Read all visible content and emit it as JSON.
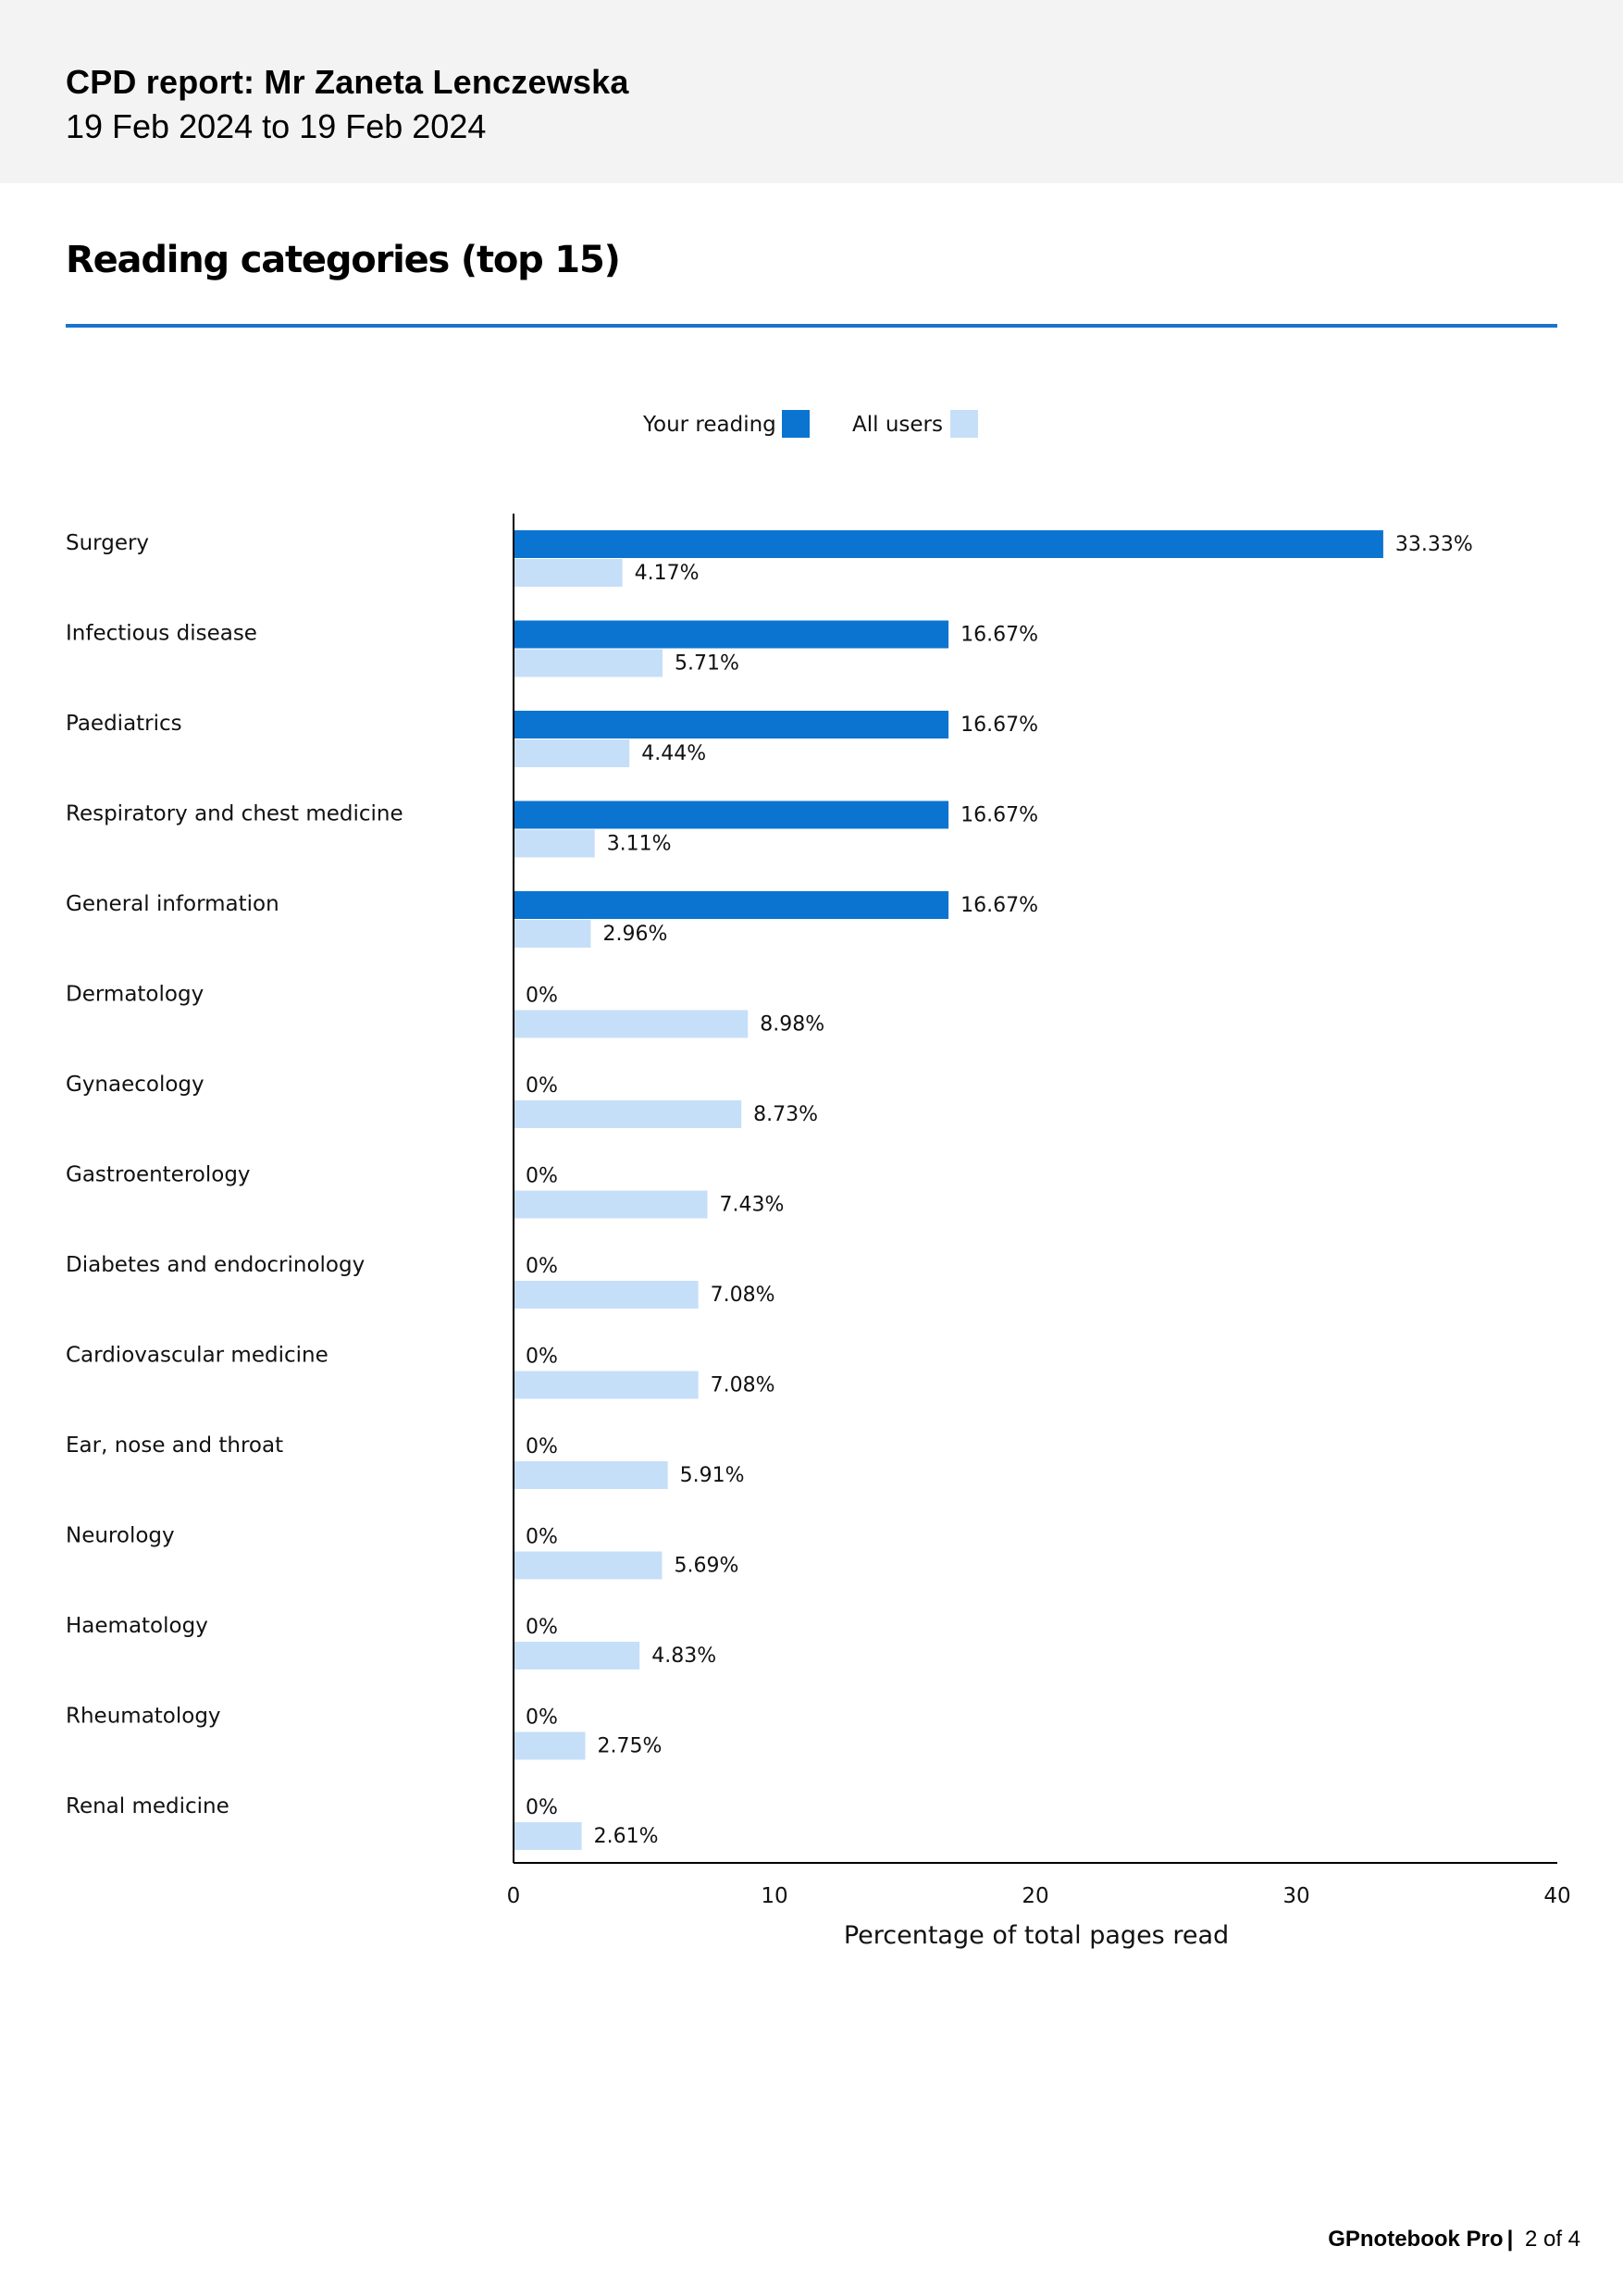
{
  "header": {
    "title": "CPD report: Mr Zaneta Lenczewska",
    "dates": "19 Feb 2024 to 19 Feb 2024"
  },
  "section": {
    "title": "Reading categories (top 15)"
  },
  "colors": {
    "your_reading": "#0b74d1",
    "all_users": "#c6dff8",
    "rule": "#1a73cf"
  },
  "chart_data": {
    "type": "bar",
    "orientation": "horizontal",
    "categories": [
      "Surgery",
      "Infectious disease",
      "Paediatrics",
      "Respiratory and chest medicine",
      "General information",
      "Dermatology",
      "Gynaecology",
      "Gastroenterology",
      "Diabetes and endocrinology",
      "Cardiovascular medicine",
      "Ear, nose and throat",
      "Neurology",
      "Haematology",
      "Rheumatology",
      "Renal medicine"
    ],
    "series": [
      {
        "name": "Your reading",
        "values": [
          33.33,
          16.67,
          16.67,
          16.67,
          16.67,
          0,
          0,
          0,
          0,
          0,
          0,
          0,
          0,
          0,
          0
        ],
        "labels": [
          "33.33%",
          "16.67%",
          "16.67%",
          "16.67%",
          "16.67%",
          "0%",
          "0%",
          "0%",
          "0%",
          "0%",
          "0%",
          "0%",
          "0%",
          "0%",
          "0%"
        ]
      },
      {
        "name": "All users",
        "values": [
          4.17,
          5.71,
          4.44,
          3.11,
          2.96,
          8.98,
          8.73,
          7.43,
          7.08,
          7.08,
          5.91,
          5.69,
          4.83,
          2.75,
          2.61
        ],
        "labels": [
          "4.17%",
          "5.71%",
          "4.44%",
          "3.11%",
          "2.96%",
          "8.98%",
          "8.73%",
          "7.43%",
          "7.08%",
          "7.08%",
          "5.91%",
          "5.69%",
          "4.83%",
          "2.75%",
          "2.61%"
        ]
      }
    ],
    "xlim": [
      0,
      40
    ],
    "xticks": [
      0,
      10,
      20,
      30,
      40
    ],
    "xlabel": "Percentage of total pages read",
    "legend": "top-center"
  },
  "footer": {
    "brand": "GPnotebook Pro",
    "separator": "|",
    "page": "2 of 4"
  }
}
